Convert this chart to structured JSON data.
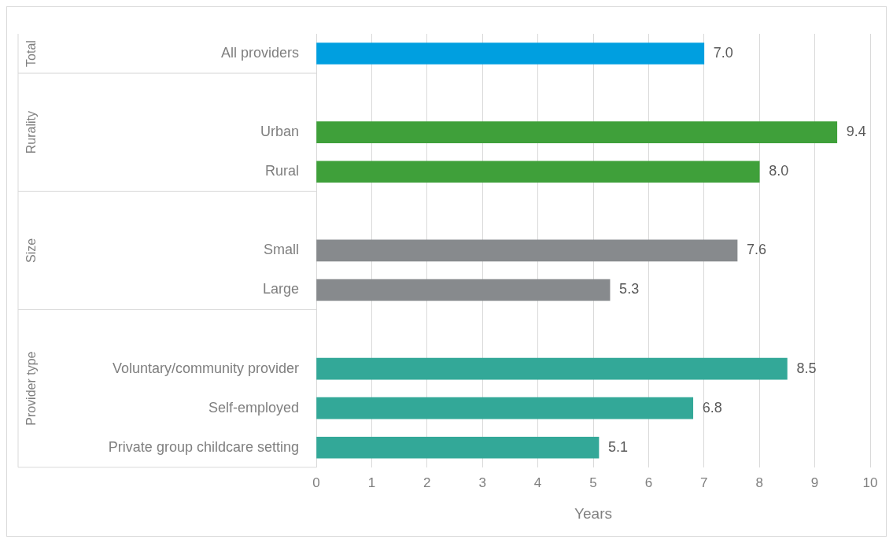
{
  "chart_data": {
    "type": "bar",
    "orientation": "horizontal",
    "xlabel": "Years",
    "categories": [
      "All providers",
      null,
      "Urban",
      "Rural",
      null,
      "Small",
      "Large",
      null,
      "Voluntary/community provider",
      "Self-employed",
      "Private group childcare setting"
    ],
    "values": [
      7.0,
      null,
      9.4,
      8.0,
      null,
      7.6,
      5.3,
      null,
      8.5,
      6.8,
      5.1
    ],
    "value_labels": [
      "7.0",
      null,
      "9.4",
      "8.0",
      null,
      "7.6",
      "5.3",
      null,
      "8.5",
      "6.8",
      "5.1"
    ],
    "colors": [
      "#009fe0",
      "#3fa03a",
      "#3fa03a",
      "#3fa03a",
      "#878a8d",
      "#878a8d",
      "#878a8d",
      "#33a898",
      "#33a898",
      "#33a898",
      "#33a898"
    ],
    "xlim": [
      0,
      10
    ],
    "xticks": [
      0,
      1,
      2,
      3,
      4,
      5,
      6,
      7,
      8,
      9,
      10
    ],
    "grid": "x",
    "legend": false,
    "annotations": [
      "Total",
      "Rurality",
      "Size",
      "Provider type"
    ]
  }
}
